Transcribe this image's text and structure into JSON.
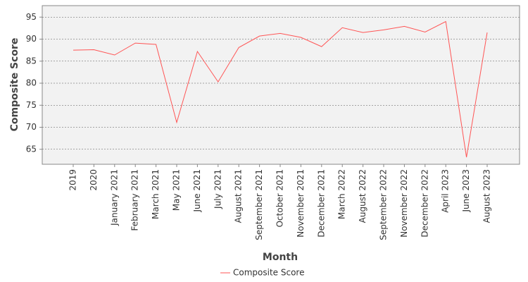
{
  "chart_data": {
    "type": "line",
    "x_label": "Month",
    "y_label": "Composite Score",
    "categories": [
      "2019",
      "2020",
      "January 2021",
      "February 2021",
      "March 2021",
      "May 2021",
      "June 2021",
      "July 2021",
      "August 2021",
      "September 2021",
      "October 2021",
      "November 2021",
      "December 2021",
      "March 2022",
      "August 2022",
      "September 2022",
      "November 2022",
      "December 2022",
      "April 2023",
      "June 2023",
      "August 2023"
    ],
    "series": [
      {
        "name": "Composite Score",
        "color": "#ff5555",
        "values": [
          87.5,
          87.6,
          86.4,
          89.1,
          88.8,
          71.1,
          87.2,
          80.3,
          88.1,
          90.7,
          91.3,
          90.4,
          88.3,
          92.6,
          91.5,
          92.1,
          92.9,
          91.6,
          94.0,
          63.2,
          91.5
        ]
      }
    ],
    "ylim": [
      61.6,
      97.6
    ],
    "yticks": [
      65,
      70,
      75,
      80,
      85,
      90,
      95
    ],
    "grid": true,
    "legend": "bottom"
  }
}
